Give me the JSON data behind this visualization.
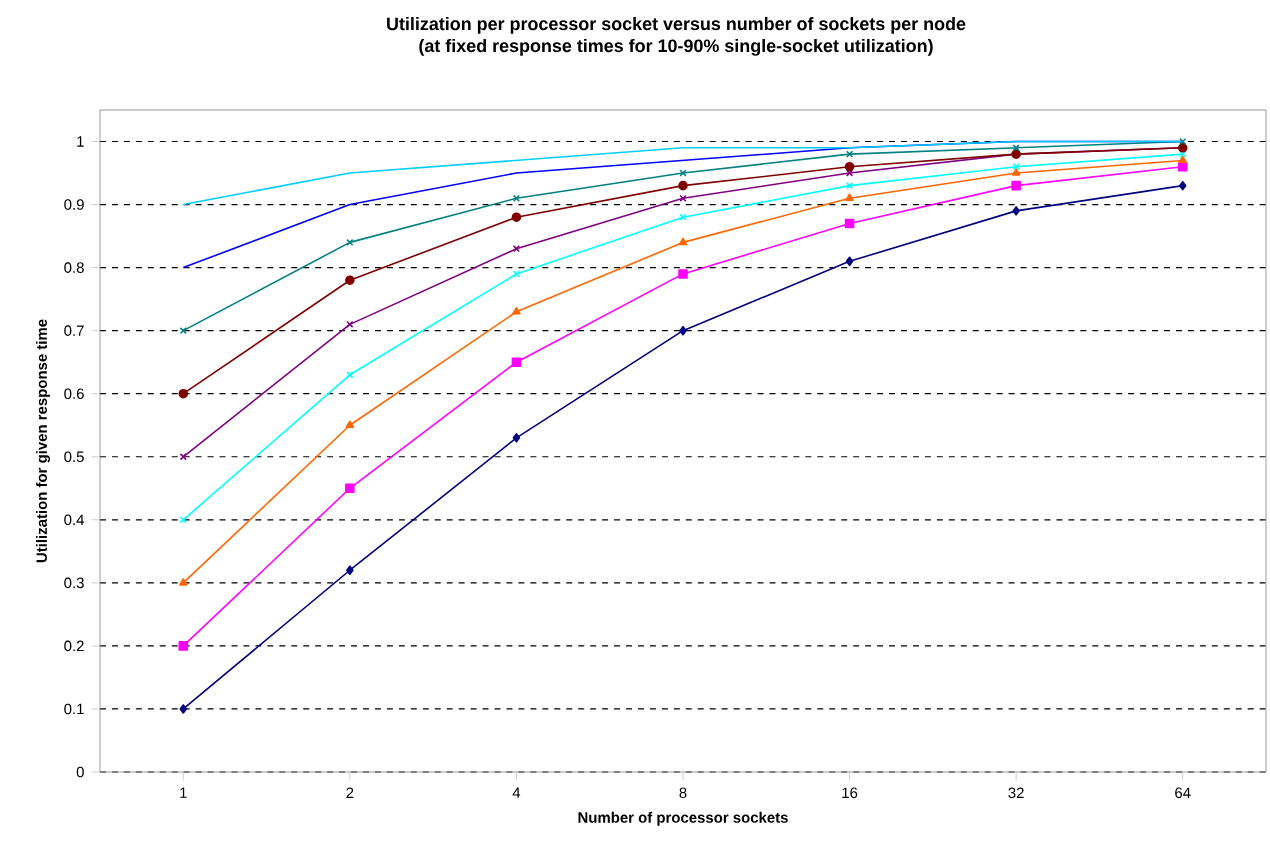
{
  "chart_data": {
    "type": "line",
    "title": "Utilization per processor socket versus number of sockets per node",
    "subtitle": "(at fixed response times for 10-90% single-socket utilization)",
    "xlabel": "Number of processor sockets",
    "ylabel": "Utilization for given response time",
    "categories": [
      "1",
      "2",
      "4",
      "8",
      "16",
      "32",
      "64"
    ],
    "series": [
      {
        "color": "#000080",
        "marker": "diamond",
        "values": [
          0.1,
          0.32,
          0.53,
          0.7,
          0.81,
          0.89,
          0.93
        ]
      },
      {
        "color": "#ff00ff",
        "marker": "square",
        "values": [
          0.2,
          0.45,
          0.65,
          0.79,
          0.87,
          0.93,
          0.96
        ]
      },
      {
        "color": "#ff6600",
        "marker": "triangle",
        "values": [
          0.3,
          0.55,
          0.73,
          0.84,
          0.91,
          0.95,
          0.97
        ]
      },
      {
        "color": "#00ffff",
        "marker": "cross",
        "values": [
          0.4,
          0.63,
          0.79,
          0.88,
          0.93,
          0.96,
          0.98
        ]
      },
      {
        "color": "#800080",
        "marker": "cross",
        "values": [
          0.5,
          0.71,
          0.83,
          0.91,
          0.95,
          0.98,
          0.99
        ]
      },
      {
        "color": "#800000",
        "marker": "circle",
        "values": [
          0.6,
          0.78,
          0.88,
          0.93,
          0.96,
          0.98,
          0.99
        ]
      },
      {
        "color": "#008080",
        "marker": "cross",
        "values": [
          0.7,
          0.84,
          0.91,
          0.95,
          0.98,
          0.99,
          1.0
        ]
      },
      {
        "color": "#0000ff",
        "marker": "none",
        "values": [
          0.8,
          0.9,
          0.95,
          0.97,
          0.99,
          1.0,
          1.0
        ]
      },
      {
        "color": "#00ccff",
        "marker": "none",
        "values": [
          0.9,
          0.95,
          0.97,
          0.99,
          0.99,
          1.0,
          1.0
        ]
      }
    ],
    "ylim": [
      0,
      1.05
    ],
    "yticks": [
      0,
      0.1,
      0.2,
      0.3,
      0.4,
      0.5,
      0.6,
      0.7,
      0.8,
      0.9,
      1
    ],
    "grid": "y",
    "line_style": "solid"
  }
}
